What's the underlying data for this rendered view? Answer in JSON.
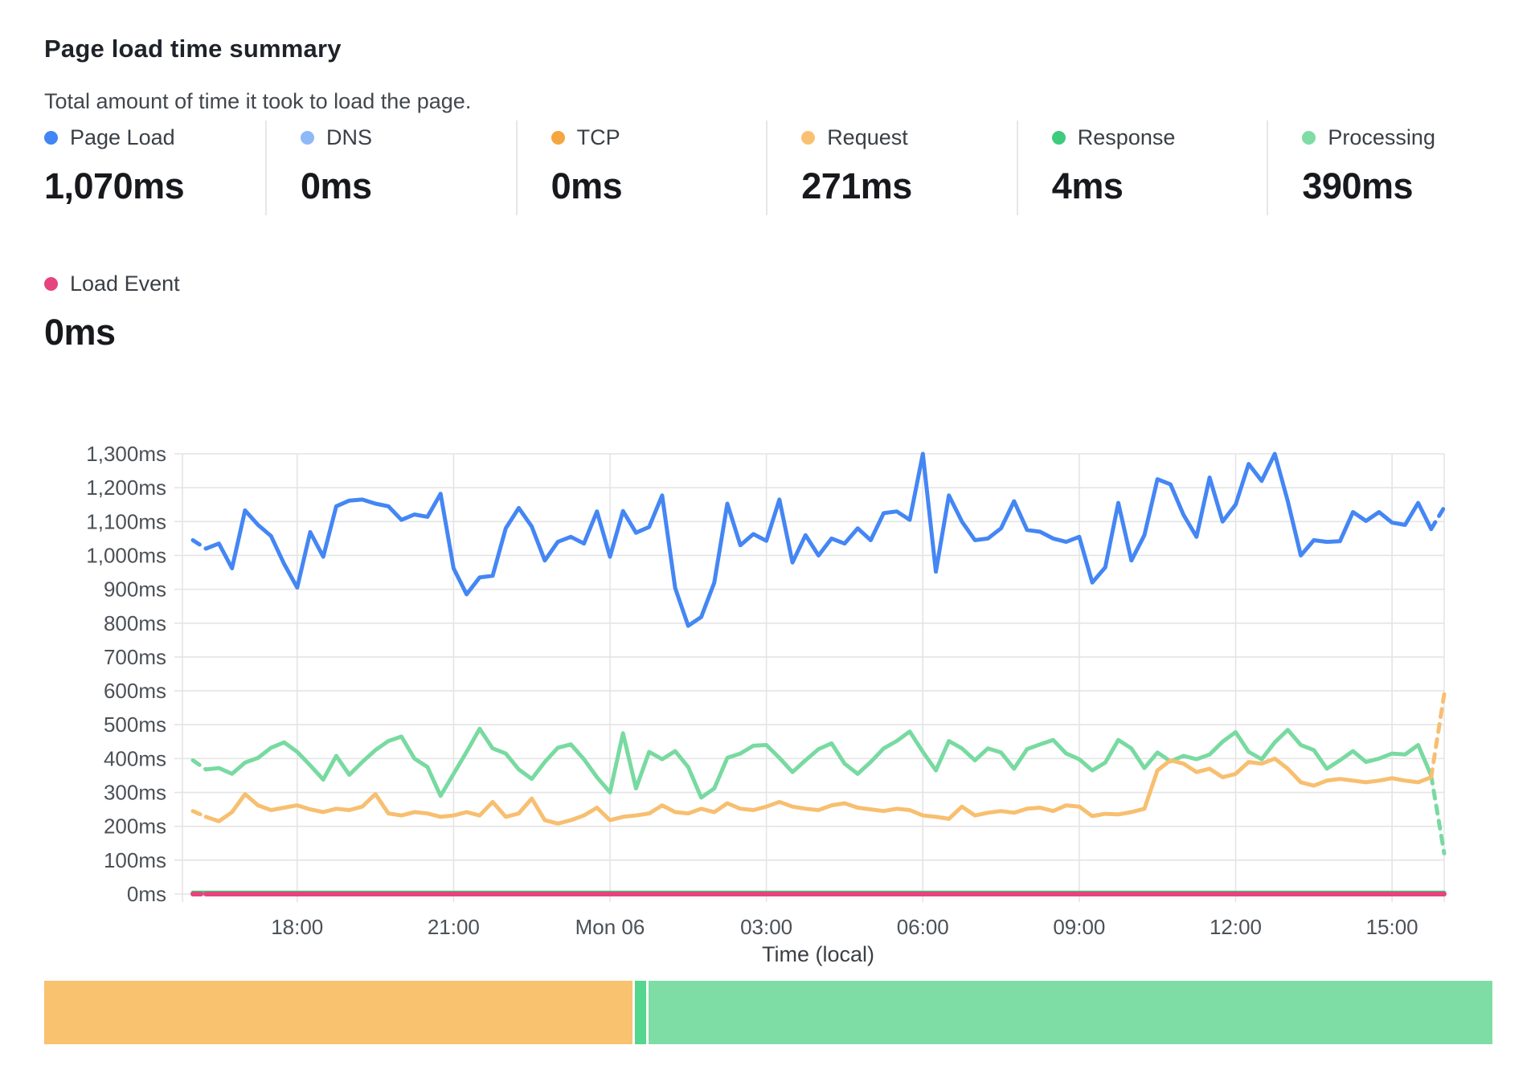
{
  "header": {
    "title": "Page load time summary",
    "subtitle": "Total amount of time it took to load the page."
  },
  "metrics": [
    {
      "label": "Page Load",
      "value": "1,070ms",
      "color": "#4285f4"
    },
    {
      "label": "DNS",
      "value": "0ms",
      "color": "#8fb8f8"
    },
    {
      "label": "TCP",
      "value": "0ms",
      "color": "#f6a63e"
    },
    {
      "label": "Request",
      "value": "271ms",
      "color": "#f8c172"
    },
    {
      "label": "Response",
      "value": "4ms",
      "color": "#3ecb7e"
    },
    {
      "label": "Processing",
      "value": "390ms",
      "color": "#7edca4"
    },
    {
      "label": "Load Event",
      "value": "0ms",
      "color": "#e5447e"
    }
  ],
  "chart_data": {
    "type": "line",
    "x_axis_label": "Time (local)",
    "x_start": "Sun 16:00",
    "x_step_minutes": 15,
    "n_points": 97,
    "x_ticks": [
      {
        "label": "18:00",
        "index": 8
      },
      {
        "label": "21:00",
        "index": 20
      },
      {
        "label": "Mon 06",
        "index": 32
      },
      {
        "label": "03:00",
        "index": 44
      },
      {
        "label": "06:00",
        "index": 56
      },
      {
        "label": "09:00",
        "index": 68
      },
      {
        "label": "12:00",
        "index": 80
      },
      {
        "label": "15:00",
        "index": 92
      }
    ],
    "ylim": [
      0,
      1300
    ],
    "y_tick_step": 100,
    "y_unit": "ms",
    "grid": true,
    "legend_position": "top-outside",
    "series": [
      {
        "name": "DNS",
        "color": "#8fb8f8",
        "values_constant": 0,
        "width": 4
      },
      {
        "name": "TCP",
        "color": "#f6a63e",
        "values_constant": 0,
        "width": 4
      },
      {
        "name": "Response",
        "color": "#3ecb7e",
        "values_constant": 4,
        "width": 5
      },
      {
        "name": "Processing",
        "color": "#78daa0",
        "width": 5,
        "dash_start": true,
        "dash_end": true,
        "values": [
          395,
          368,
          372,
          355,
          388,
          402,
          432,
          448,
          420,
          380,
          338,
          408,
          352,
          390,
          425,
          452,
          465,
          400,
          375,
          290,
          355,
          420,
          488,
          430,
          415,
          368,
          340,
          390,
          432,
          442,
          398,
          345,
          300,
          475,
          312,
          420,
          398,
          422,
          375,
          285,
          312,
          402,
          415,
          438,
          440,
          402,
          360,
          395,
          428,
          445,
          385,
          355,
          390,
          430,
          452,
          480,
          420,
          365,
          452,
          430,
          395,
          430,
          418,
          370,
          428,
          442,
          455,
          415,
          398,
          365,
          388,
          455,
          430,
          372,
          418,
          392,
          408,
          398,
          412,
          450,
          478,
          420,
          398,
          448,
          485,
          440,
          425,
          370,
          395,
          422,
          390,
          400,
          415,
          412,
          440,
          350,
          120
        ]
      },
      {
        "name": "Request",
        "color": "#f7bf70",
        "width": 5,
        "dash_start": true,
        "dash_end": true,
        "values": [
          245,
          228,
          215,
          242,
          295,
          262,
          248,
          255,
          262,
          250,
          242,
          252,
          248,
          258,
          295,
          238,
          232,
          242,
          238,
          228,
          232,
          242,
          232,
          272,
          228,
          238,
          282,
          218,
          208,
          218,
          232,
          255,
          218,
          228,
          232,
          238,
          262,
          242,
          238,
          252,
          242,
          268,
          252,
          248,
          258,
          272,
          258,
          252,
          248,
          262,
          268,
          255,
          250,
          245,
          252,
          248,
          232,
          228,
          222,
          258,
          232,
          240,
          245,
          240,
          252,
          255,
          245,
          262,
          258,
          230,
          237,
          235,
          242,
          252,
          365,
          395,
          385,
          360,
          370,
          345,
          355,
          390,
          385,
          400,
          370,
          330,
          320,
          335,
          340,
          335,
          330,
          335,
          342,
          335,
          330,
          345,
          590
        ]
      },
      {
        "name": "Page Load",
        "color": "#4486f4",
        "width": 5,
        "dash_start": true,
        "dash_end": true,
        "values": [
          1045,
          1020,
          1035,
          962,
          1133,
          1090,
          1057,
          975,
          905,
          1069,
          996,
          1145,
          1162,
          1165,
          1153,
          1145,
          1105,
          1121,
          1114,
          1182,
          962,
          885,
          935,
          940,
          1080,
          1140,
          1085,
          985,
          1040,
          1055,
          1035,
          1130,
          996,
          1131,
          1067,
          1084,
          1177,
          904,
          792,
          818,
          920,
          1153,
          1030,
          1063,
          1043,
          1165,
          979,
          1060,
          1000,
          1050,
          1035,
          1080,
          1045,
          1125,
          1130,
          1105,
          1300,
          952,
          1177,
          1100,
          1045,
          1050,
          1080,
          1160,
          1075,
          1070,
          1050,
          1040,
          1055,
          920,
          965,
          1155,
          985,
          1060,
          1225,
          1210,
          1120,
          1055,
          1230,
          1100,
          1150,
          1270,
          1220,
          1300,
          1160,
          1000,
          1045,
          1040,
          1042,
          1128,
          1102,
          1128,
          1097,
          1090,
          1155,
          1078,
          1142
        ]
      },
      {
        "name": "Load Event",
        "color": "#e5447e",
        "values_constant": 0,
        "width": 6,
        "dash_start": true
      }
    ]
  },
  "breakdown_bar": {
    "segments": [
      {
        "name": "Request",
        "color": "#f8c26f",
        "fraction": 0.4075
      },
      {
        "name": "Response",
        "color": "#55d68f",
        "fraction": 0.008
      },
      {
        "name": "Processing",
        "color": "#7edda4",
        "fraction": 0.5845
      }
    ]
  }
}
